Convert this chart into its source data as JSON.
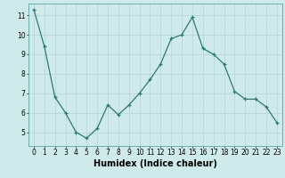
{
  "x": [
    0,
    1,
    2,
    3,
    4,
    5,
    6,
    7,
    8,
    9,
    10,
    11,
    12,
    13,
    14,
    15,
    16,
    17,
    18,
    19,
    20,
    21,
    22,
    23
  ],
  "y": [
    11.3,
    9.4,
    6.8,
    6.0,
    5.0,
    4.7,
    5.2,
    6.4,
    5.9,
    6.4,
    7.0,
    7.7,
    8.5,
    9.8,
    10.0,
    10.9,
    9.3,
    9.0,
    8.5,
    7.1,
    6.7,
    6.7,
    6.3,
    5.5
  ],
  "xlabel": "Humidex (Indice chaleur)",
  "ylim": [
    4.3,
    11.6
  ],
  "xlim": [
    -0.5,
    23.5
  ],
  "yticks": [
    5,
    6,
    7,
    8,
    9,
    10,
    11
  ],
  "xticks": [
    0,
    1,
    2,
    3,
    4,
    5,
    6,
    7,
    8,
    9,
    10,
    11,
    12,
    13,
    14,
    15,
    16,
    17,
    18,
    19,
    20,
    21,
    22,
    23
  ],
  "line_color": "#2d7a6e",
  "marker": "+",
  "bg_color": "#ceeaea",
  "grid_color": "#b8d8d8",
  "tick_label_fontsize": 5.5,
  "xlabel_fontsize": 7
}
